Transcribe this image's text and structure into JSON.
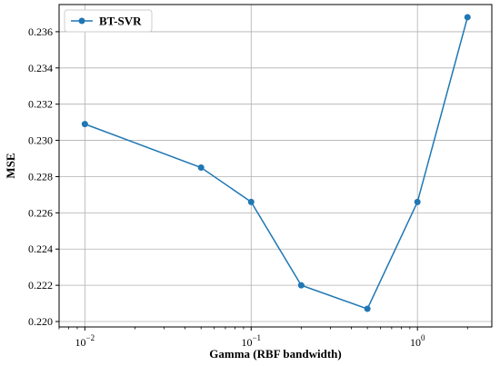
{
  "chart_data": {
    "type": "line",
    "xlabel": "Gamma (RBF bandwidth)",
    "ylabel": "MSE",
    "xscale": "log",
    "xlim": [
      0.007,
      2.8
    ],
    "ylim": [
      0.2197,
      0.2375
    ],
    "x_ticks": [
      {
        "value": 0.01,
        "base": "10",
        "exp": "−2"
      },
      {
        "value": 0.1,
        "base": "10",
        "exp": "−1"
      },
      {
        "value": 1,
        "base": "10",
        "exp": "0"
      }
    ],
    "y_ticks": [
      {
        "value": 0.22,
        "label": "0.220"
      },
      {
        "value": 0.222,
        "label": "0.222"
      },
      {
        "value": 0.224,
        "label": "0.224"
      },
      {
        "value": 0.226,
        "label": "0.226"
      },
      {
        "value": 0.228,
        "label": "0.228"
      },
      {
        "value": 0.23,
        "label": "0.230"
      },
      {
        "value": 0.232,
        "label": "0.232"
      },
      {
        "value": 0.234,
        "label": "0.234"
      },
      {
        "value": 0.236,
        "label": "0.236"
      }
    ],
    "grid": true,
    "legend_position": "top-left",
    "series": [
      {
        "name": "BT-SVR",
        "color": "#1f77b4",
        "marker": "circle",
        "x": [
          0.01,
          0.05,
          0.1,
          0.2,
          0.5,
          1,
          2
        ],
        "y": [
          0.2309,
          0.2285,
          0.2266,
          0.222,
          0.2207,
          0.2266,
          0.2368
        ]
      }
    ]
  }
}
